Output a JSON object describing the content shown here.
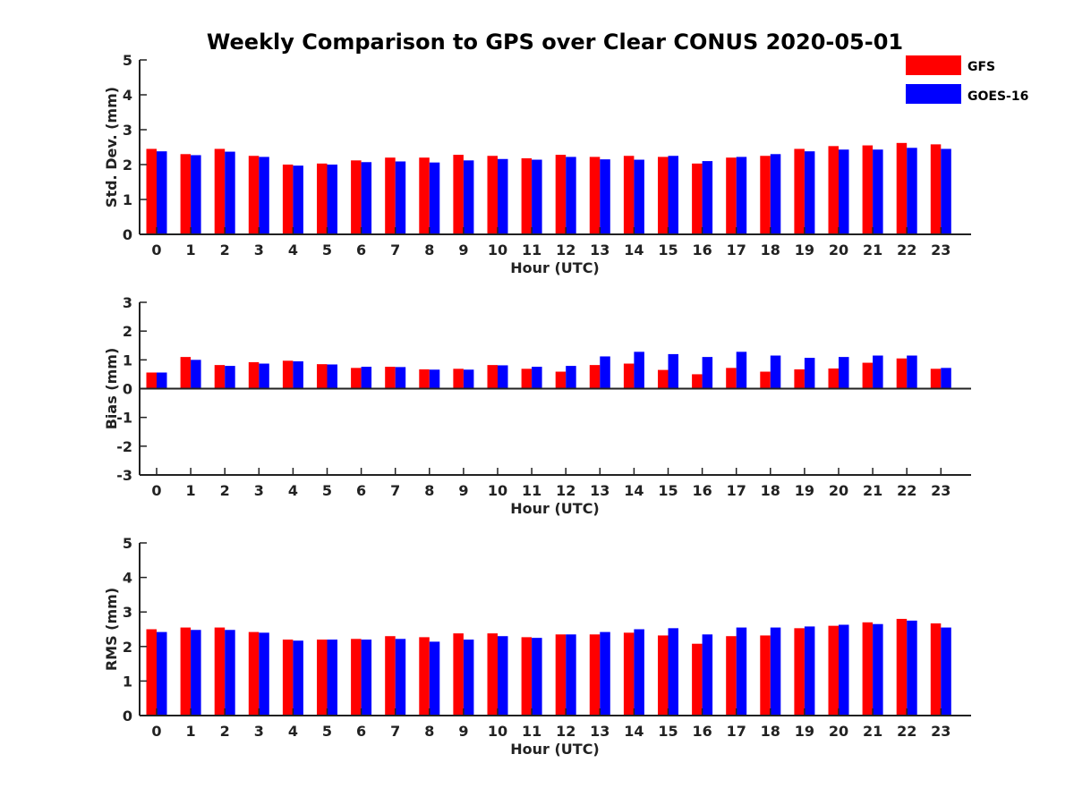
{
  "title": "Weekly Comparison to GPS over Clear CONUS 2020-05-01",
  "colors": {
    "GFS": "#ff0000",
    "GOES-16": "#0000ff"
  },
  "chart_data": [
    {
      "type": "bar",
      "xlabel": "Hour (UTC)",
      "ylabel": "Std. Dev. (mm)",
      "ylim": [
        0,
        5
      ],
      "yticks": [
        "0",
        "1",
        "2",
        "3",
        "4",
        "5"
      ],
      "categories": [
        "0",
        "1",
        "2",
        "3",
        "4",
        "5",
        "6",
        "7",
        "8",
        "9",
        "10",
        "11",
        "12",
        "13",
        "14",
        "15",
        "16",
        "17",
        "18",
        "19",
        "20",
        "21",
        "22",
        "23"
      ],
      "series": [
        {
          "name": "GFS",
          "values": [
            2.45,
            2.3,
            2.45,
            2.25,
            2.0,
            2.03,
            2.12,
            2.2,
            2.2,
            2.28,
            2.25,
            2.18,
            2.28,
            2.22,
            2.25,
            2.22,
            2.03,
            2.2,
            2.25,
            2.45,
            2.53,
            2.55,
            2.62,
            2.58
          ]
        },
        {
          "name": "GOES-16",
          "values": [
            2.38,
            2.27,
            2.37,
            2.22,
            1.97,
            2.0,
            2.07,
            2.09,
            2.06,
            2.12,
            2.16,
            2.14,
            2.22,
            2.15,
            2.14,
            2.25,
            2.1,
            2.22,
            2.3,
            2.38,
            2.43,
            2.43,
            2.48,
            2.45
          ]
        }
      ]
    },
    {
      "type": "bar",
      "xlabel": "Hour (UTC)",
      "ylabel": "Bias (mm)",
      "ylim": [
        -3,
        3
      ],
      "yticks": [
        "-3",
        "-2",
        "-1",
        "0",
        "1",
        "2",
        "3"
      ],
      "categories": [
        "0",
        "1",
        "2",
        "3",
        "4",
        "5",
        "6",
        "7",
        "8",
        "9",
        "10",
        "11",
        "12",
        "13",
        "14",
        "15",
        "16",
        "17",
        "18",
        "19",
        "20",
        "21",
        "22",
        "23"
      ],
      "series": [
        {
          "name": "GFS",
          "values": [
            0.56,
            1.1,
            0.82,
            0.92,
            0.97,
            0.85,
            0.72,
            0.76,
            0.67,
            0.69,
            0.82,
            0.69,
            0.59,
            0.82,
            0.87,
            0.65,
            0.5,
            0.72,
            0.59,
            0.67,
            0.7,
            0.9,
            1.05,
            0.69
          ]
        },
        {
          "name": "GOES-16",
          "values": [
            0.56,
            1.0,
            0.79,
            0.87,
            0.95,
            0.84,
            0.76,
            0.75,
            0.66,
            0.66,
            0.81,
            0.76,
            0.79,
            1.12,
            1.28,
            1.2,
            1.1,
            1.28,
            1.15,
            1.07,
            1.1,
            1.15,
            1.15,
            0.72
          ]
        }
      ]
    },
    {
      "type": "bar",
      "xlabel": "Hour (UTC)",
      "ylabel": "RMS (mm)",
      "ylim": [
        0,
        5
      ],
      "yticks": [
        "0",
        "1",
        "2",
        "3",
        "4",
        "5"
      ],
      "categories": [
        "0",
        "1",
        "2",
        "3",
        "4",
        "5",
        "6",
        "7",
        "8",
        "9",
        "10",
        "11",
        "12",
        "13",
        "14",
        "15",
        "16",
        "17",
        "18",
        "19",
        "20",
        "21",
        "22",
        "23"
      ],
      "series": [
        {
          "name": "GFS",
          "values": [
            2.5,
            2.55,
            2.55,
            2.42,
            2.2,
            2.2,
            2.22,
            2.3,
            2.27,
            2.38,
            2.38,
            2.27,
            2.35,
            2.35,
            2.4,
            2.32,
            2.08,
            2.3,
            2.32,
            2.53,
            2.6,
            2.7,
            2.8,
            2.67
          ]
        },
        {
          "name": "GOES-16",
          "values": [
            2.42,
            2.48,
            2.48,
            2.4,
            2.17,
            2.2,
            2.2,
            2.22,
            2.14,
            2.2,
            2.3,
            2.25,
            2.35,
            2.42,
            2.5,
            2.53,
            2.35,
            2.55,
            2.55,
            2.58,
            2.63,
            2.65,
            2.75,
            2.55
          ]
        }
      ]
    }
  ]
}
